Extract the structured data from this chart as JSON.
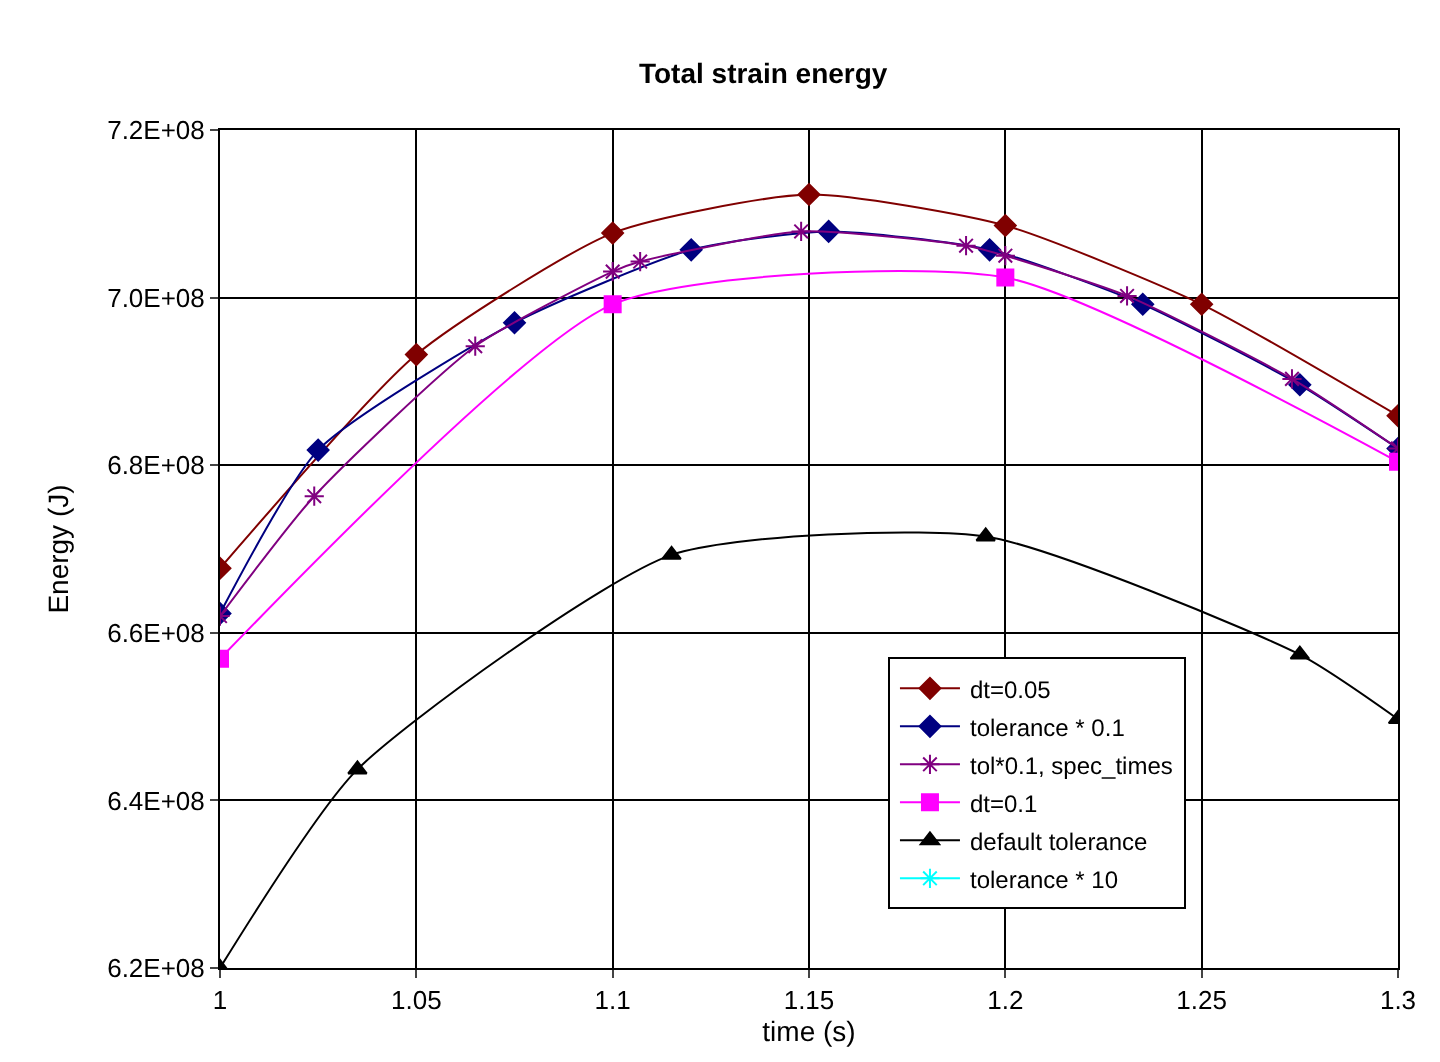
{
  "chart_data": {
    "type": "line",
    "title": "Total strain energy",
    "xlabel": "time (s)",
    "ylabel": "Energy (J)",
    "xlim": [
      1,
      1.3
    ],
    "xticks": [
      1,
      1.05,
      1.1,
      1.15,
      1.2,
      1.25,
      1.3
    ],
    "ylim": [
      620000000,
      720000000
    ],
    "yticks": [
      {
        "value": 620000000,
        "label": "6.2E+08"
      },
      {
        "value": 640000000,
        "label": "6.4E+08"
      },
      {
        "value": 660000000,
        "label": "6.6E+08"
      },
      {
        "value": 680000000,
        "label": "6.8E+08"
      },
      {
        "value": 700000000,
        "label": "7.0E+08"
      },
      {
        "value": 720000000,
        "label": "7.2E+08"
      }
    ],
    "grid": true,
    "legend": "bottom right",
    "series": [
      {
        "name": "dt=0.05",
        "color": "#800000",
        "marker": "diamond",
        "x": [
          1,
          1.05,
          1.1,
          1.15,
          1.2,
          1.25,
          1.3
        ],
        "values": [
          667700000,
          693200000,
          707700000,
          712300000,
          708600000,
          699200000,
          685900000
        ]
      },
      {
        "name": "tolerance * 0.1",
        "color": "#000080",
        "marker": "diamond",
        "x": [
          1,
          1.025,
          1.075,
          1.12,
          1.155,
          1.196,
          1.235,
          1.275,
          1.3
        ],
        "values": [
          662300000,
          681800000,
          697000000,
          705700000,
          707900000,
          705700000,
          699200000,
          689600000,
          682000000
        ]
      },
      {
        "name": "tol*0.1, spec_times",
        "color": "#800080",
        "marker": "cross",
        "x": [
          1,
          1.024,
          1.065,
          1.1,
          1.107,
          1.148,
          1.19,
          1.2,
          1.231,
          1.273,
          1.3
        ],
        "values": [
          662000000,
          676300000,
          694200000,
          703100000,
          704300000,
          707900000,
          706200000,
          705000000,
          700200000,
          690300000,
          682000000
        ]
      },
      {
        "name": "dt=0.1",
        "color": "#ff00ff",
        "marker": "square",
        "x": [
          1,
          1.1,
          1.2,
          1.3
        ],
        "values": [
          656900000,
          699200000,
          702400000,
          680400000
        ]
      },
      {
        "name": "default tolerance",
        "color": "#000000",
        "marker": "triangle",
        "x": [
          1,
          1.035,
          1.115,
          1.195,
          1.275,
          1.3
        ],
        "values": [
          620000000,
          643700000,
          669300000,
          671500000,
          657400000,
          649700000
        ]
      },
      {
        "name": "tolerance * 10",
        "color": "#00ffff",
        "marker": "cross"
      }
    ]
  }
}
